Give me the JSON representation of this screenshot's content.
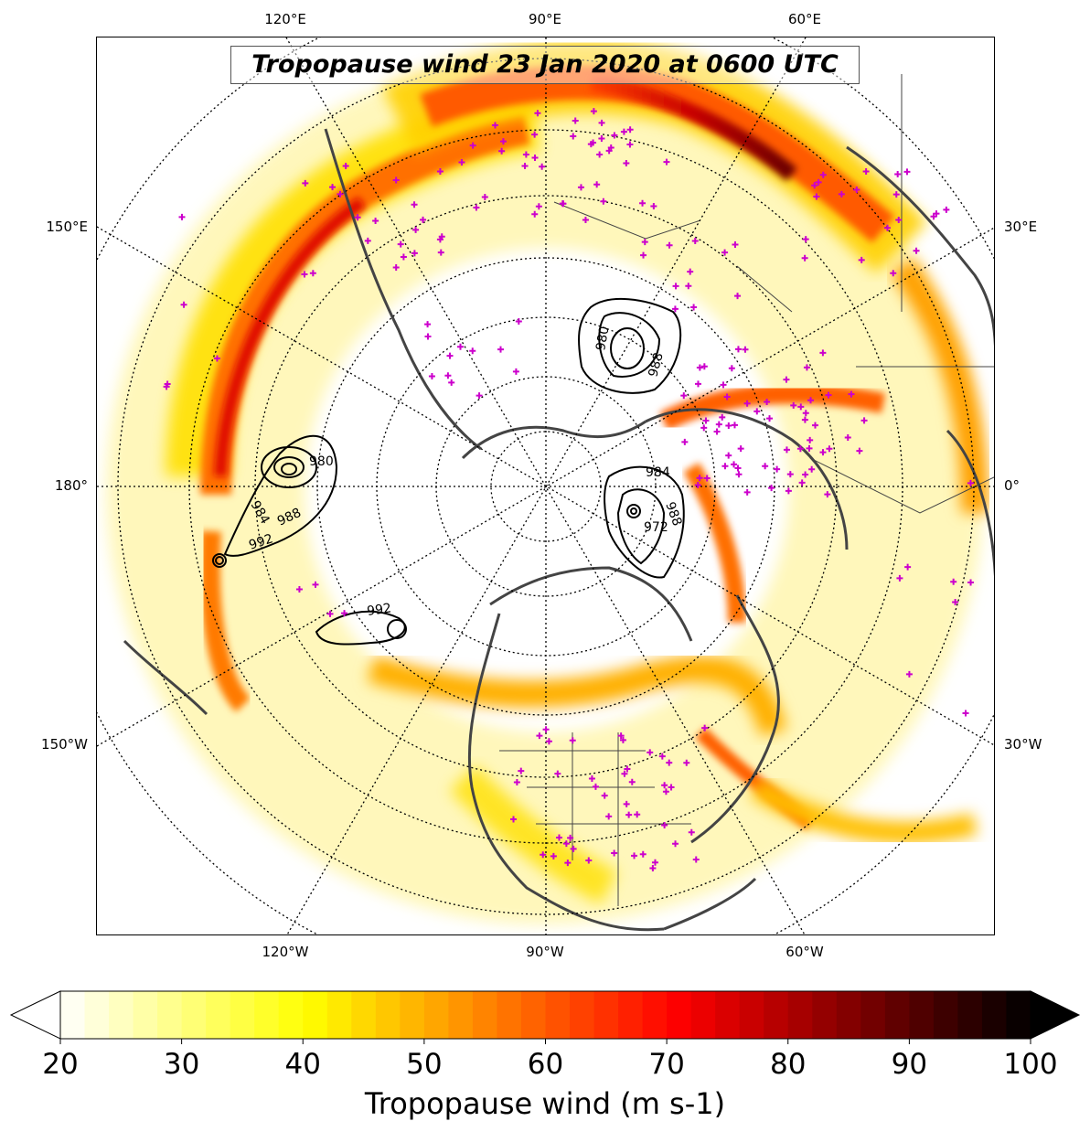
{
  "title": "Tropopause wind 23 Jan 2020 at 0600 UTC",
  "map": {
    "projection": "north-polar-stereographic",
    "top_labels": [
      "120°E",
      "90°E",
      "60°E"
    ],
    "bottom_labels": [
      "120°W",
      "90°W",
      "60°W"
    ],
    "left_labels": [
      "150°E",
      "180°",
      "150°W"
    ],
    "right_labels": [
      "30°E",
      "0°",
      "30°W"
    ],
    "contour_labels": [
      "980",
      "984",
      "988",
      "992",
      "992",
      "980",
      "988",
      "984",
      "988",
      "972"
    ],
    "colors": {
      "coast": "#444444",
      "marker": "#cc00cc",
      "contour": "#000000"
    }
  },
  "colorbar": {
    "title": "Tropopause wind (m s-1)",
    "ticks": [
      "20",
      "30",
      "40",
      "50",
      "60",
      "70",
      "80",
      "90",
      "100"
    ],
    "min": 20,
    "max": 100,
    "colormap": "hot_r"
  }
}
